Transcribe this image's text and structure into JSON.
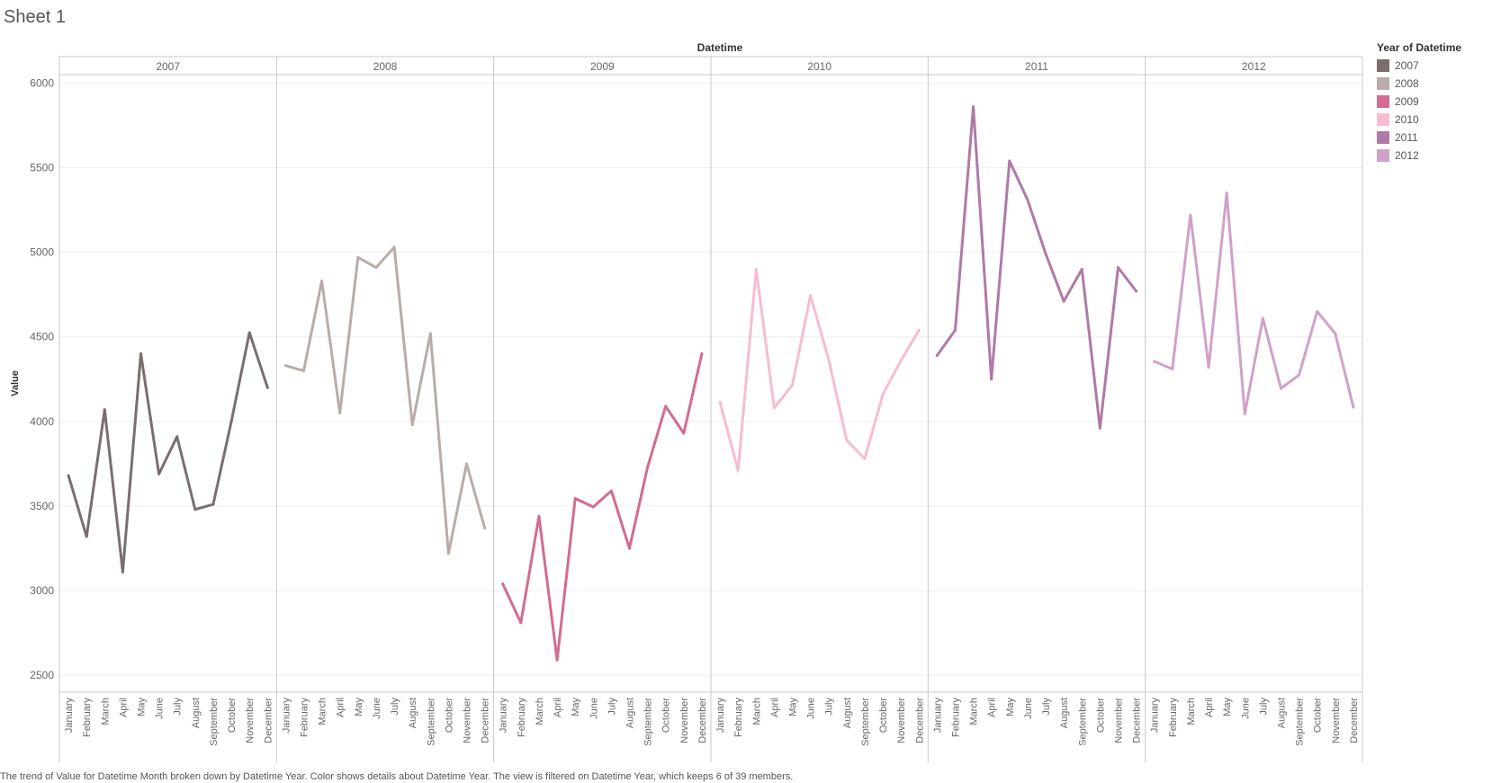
{
  "sheet": {
    "title": "Sheet 1"
  },
  "caption": "The trend of Value for Datetime Month broken down by Datetime Year.  Color shows details about Datetime Year. The view is filtered on Datetime Year, which keeps 6 of 39 members.",
  "legend": {
    "title": "Year of Datetime",
    "items": [
      {
        "label": "2007",
        "color": "#7b6e6e"
      },
      {
        "label": "2008",
        "color": "#b9aca9"
      },
      {
        "label": "2009",
        "color": "#d36b93"
      },
      {
        "label": "2010",
        "color": "#f7bcd3"
      },
      {
        "label": "2011",
        "color": "#b07aa6"
      },
      {
        "label": "2012",
        "color": "#d1a1c9"
      }
    ]
  },
  "chart_data": {
    "type": "line",
    "title": "",
    "column_header": "Datetime",
    "ylabel": "Value",
    "ylim": [
      2400,
      6050
    ],
    "yticks": [
      2500,
      3000,
      3500,
      4000,
      4500,
      5000,
      5500,
      6000
    ],
    "grid": true,
    "legend_position": "right",
    "categories": [
      "January",
      "February",
      "March",
      "April",
      "May",
      "June",
      "July",
      "August",
      "September",
      "October",
      "November",
      "December"
    ],
    "series": [
      {
        "name": "2007",
        "color": "#7b6e6e",
        "values": [
          3680,
          3320,
          4070,
          3110,
          4400,
          3690,
          3910,
          3480,
          3510,
          4000,
          4525,
          4200
        ]
      },
      {
        "name": "2008",
        "color": "#b9aca9",
        "values": [
          4330,
          4300,
          4830,
          4050,
          4970,
          4910,
          5030,
          3980,
          4520,
          3220,
          3750,
          3370
        ]
      },
      {
        "name": "2009",
        "color": "#d36b93",
        "values": [
          3040,
          2810,
          3440,
          2590,
          3545,
          3495,
          3590,
          3250,
          3730,
          4090,
          3930,
          4400
        ]
      },
      {
        "name": "2010",
        "color": "#f7bcd3",
        "values": [
          4115,
          3710,
          4900,
          4080,
          4215,
          4745,
          4370,
          3890,
          3780,
          4160,
          4360,
          4540
        ]
      },
      {
        "name": "2011",
        "color": "#b07aa6",
        "values": [
          4390,
          4540,
          5860,
          4250,
          5540,
          5310,
          4990,
          4710,
          4900,
          3960,
          4910,
          4770
        ]
      },
      {
        "name": "2012",
        "color": "#d1a1c9",
        "values": [
          4355,
          4310,
          5220,
          4320,
          5350,
          4045,
          4610,
          4195,
          4275,
          4650,
          4520,
          4085
        ]
      }
    ]
  }
}
